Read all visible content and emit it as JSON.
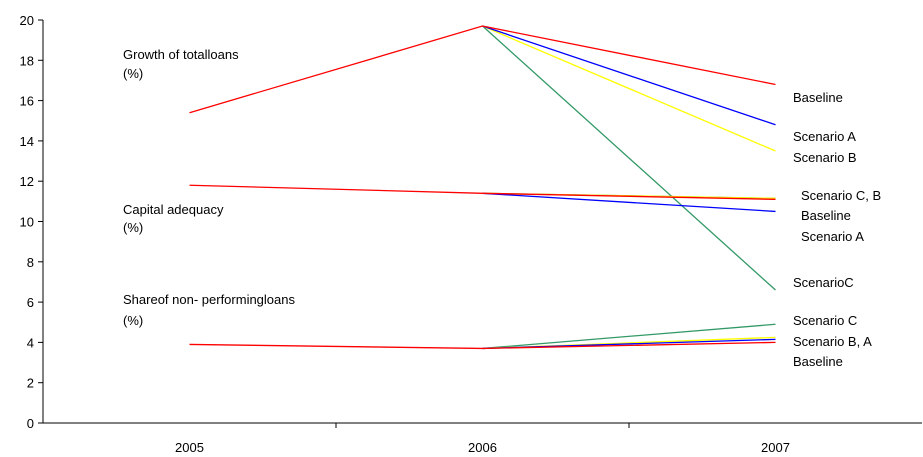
{
  "chart_data": {
    "type": "line",
    "x": [
      "2005",
      "2006",
      "2007"
    ],
    "ylim": [
      0,
      20
    ],
    "yticks": [
      "0",
      "2",
      "4",
      "6",
      "8",
      "10",
      "12",
      "14",
      "16",
      "18",
      "20"
    ],
    "grid": false,
    "series": [
      {
        "group": "loans",
        "color": "#ff0000",
        "values": [
          15.4,
          19.7,
          16.8
        ]
      },
      {
        "group": "loans",
        "color": "#0000ff",
        "values": [
          null,
          19.7,
          14.8
        ]
      },
      {
        "group": "loans",
        "color": "#ffff00",
        "values": [
          null,
          19.7,
          13.5
        ]
      },
      {
        "group": "loans",
        "color": "#339966",
        "values": [
          null,
          19.7,
          6.6
        ]
      },
      {
        "group": "capital",
        "color": "#ff0000",
        "values": [
          11.8,
          11.4,
          11.1
        ]
      },
      {
        "group": "capital",
        "color": "#0000ff",
        "values": [
          null,
          11.4,
          10.5
        ]
      },
      {
        "group": "capital",
        "color": "#ffff00",
        "values": [
          null,
          11.4,
          11.15
        ]
      },
      {
        "group": "capital",
        "color": "#339966",
        "values": [
          null,
          11.4,
          11.15
        ]
      },
      {
        "group": "npl",
        "color": "#ff0000",
        "values": [
          3.9,
          3.7,
          4.0
        ]
      },
      {
        "group": "npl",
        "color": "#0000ff",
        "values": [
          null,
          3.7,
          4.15
        ]
      },
      {
        "group": "npl",
        "color": "#ffff00",
        "values": [
          null,
          3.7,
          4.25
        ]
      },
      {
        "group": "npl",
        "color": "#339966",
        "values": [
          null,
          3.7,
          4.9
        ]
      }
    ],
    "annotations": {
      "group_loans_1": "Growth of totalloans",
      "group_loans_2": "(%)",
      "group_capital_1": "Capital  adequacy",
      "group_capital_2": "(%)",
      "group_npl_1": "Shareof non- performingloans",
      "group_npl_2": "(%)",
      "end_loans_1": "Baseline",
      "end_loans_2": "Scenario A",
      "end_loans_3": "Scenario B",
      "end_capital_1": "Scenario C, B",
      "end_capital_2": "Baseline",
      "end_capital_3": "Scenario A",
      "end_loans_4": "ScenarioC",
      "end_npl_1": "Scenario C",
      "end_npl_2": "Scenario B, A",
      "end_npl_3": "Baseline"
    }
  }
}
